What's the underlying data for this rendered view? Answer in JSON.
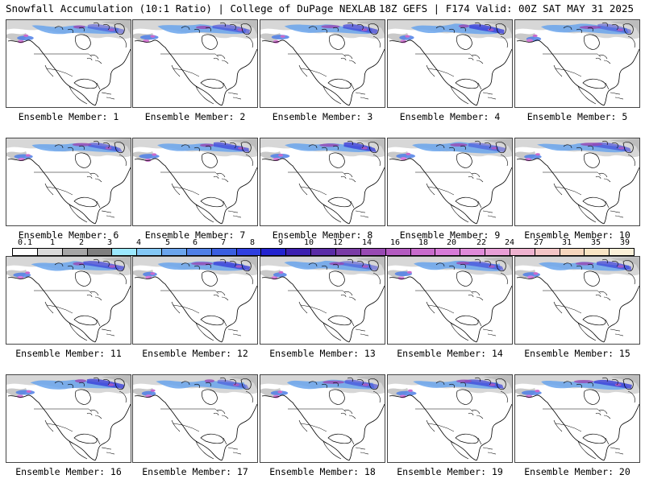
{
  "header": {
    "title_left": "Snowfall Accumulation (10:1 Ratio) | College of DuPage NEXLAB",
    "title_right": "18Z GEFS | F174 Valid: 00Z SAT MAY 31 2025"
  },
  "members": [
    {
      "label": "Ensemble Member: 1"
    },
    {
      "label": "Ensemble Member: 2"
    },
    {
      "label": "Ensemble Member: 3"
    },
    {
      "label": "Ensemble Member: 4"
    },
    {
      "label": "Ensemble Member: 5"
    },
    {
      "label": "Ensemble Member: 6"
    },
    {
      "label": "Ensemble Member: 7"
    },
    {
      "label": "Ensemble Member: 8"
    },
    {
      "label": "Ensemble Member: 9"
    },
    {
      "label": "Ensemble Member: 10"
    },
    {
      "label": "Ensemble Member: 11"
    },
    {
      "label": "Ensemble Member: 12"
    },
    {
      "label": "Ensemble Member: 13"
    },
    {
      "label": "Ensemble Member: 14"
    },
    {
      "label": "Ensemble Member: 15"
    },
    {
      "label": "Ensemble Member: 16"
    },
    {
      "label": "Ensemble Member: 17"
    },
    {
      "label": "Ensemble Member: 18"
    },
    {
      "label": "Ensemble Member: 19"
    },
    {
      "label": "Ensemble Member: 20"
    }
  ],
  "colorbar": {
    "labels": [
      "0.1",
      "1",
      "2",
      "3",
      "4",
      "5",
      "6",
      "7",
      "8",
      "9",
      "10",
      "12",
      "14",
      "16",
      "18",
      "20",
      "22",
      "24",
      "27",
      "31",
      "35",
      "39"
    ],
    "colors": [
      "#ffffff",
      "#d9d9d9",
      "#a6a6a6",
      "#7f7f7f",
      "#9be8ff",
      "#83c7f5",
      "#6aa4ec",
      "#4f7fe6",
      "#3a5ee0",
      "#2f3fe0",
      "#2222cf",
      "#3b1fb0",
      "#5a2ba6",
      "#7a3ba6",
      "#9849b3",
      "#b35ac0",
      "#c86acc",
      "#d77ad8",
      "#e08ad9",
      "#e89ed6",
      "#eeb2cf",
      "#f3c5c6",
      "#f6d6bd",
      "#f8e4c4",
      "#fbf0d8"
    ]
  }
}
